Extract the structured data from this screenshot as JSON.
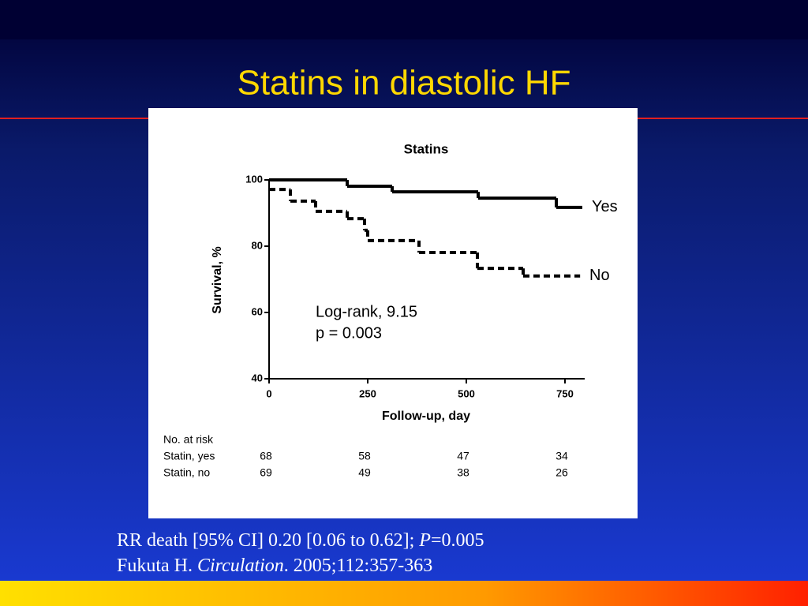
{
  "slide_title": "Statins in diastolic HF",
  "chart_data": {
    "type": "step",
    "title": "Statins",
    "x_label": "Follow-up, day",
    "y_label": "Survival, %",
    "xlim": [
      0,
      800
    ],
    "ylim": [
      40,
      100
    ],
    "xticks": [
      0,
      250,
      500,
      750
    ],
    "yticks": [
      40,
      60,
      80,
      100
    ],
    "series": [
      {
        "name": "Yes",
        "color": "#000000",
        "dashed": false,
        "x": [
          0,
          198,
          312,
          530,
          728,
          794
        ],
        "values": [
          100,
          98.1,
          96.4,
          94.5,
          91.7,
          91.7
        ]
      },
      {
        "name": "No",
        "color": "#000000",
        "dashed": true,
        "x": [
          0,
          54,
          118,
          198,
          242,
          250,
          380,
          528,
          644,
          788
        ],
        "values": [
          97.1,
          93.6,
          90.5,
          88.3,
          84.8,
          81.7,
          78.1,
          73.3,
          71.0,
          71.0
        ]
      }
    ],
    "annotations": [
      "Log-rank, 9.15",
      "p = 0.003"
    ],
    "risk_table": {
      "title": "No. at risk",
      "rows": [
        {
          "label": "Statin, yes",
          "values": [
            68,
            58,
            47,
            34
          ]
        },
        {
          "label": "Statin, no",
          "values": [
            69,
            49,
            38,
            26
          ]
        }
      ]
    }
  },
  "footnote": [
    [
      {
        "text": "RR death [95% CI] 0.20 [0.06 to 0.62]; "
      },
      {
        "text": "P",
        "italic": true
      },
      {
        "text": "=0.005"
      }
    ],
    [
      {
        "text": "Fukuta H. "
      },
      {
        "text": "Circulation",
        "italic": true
      },
      {
        "text": ". 2005;112:357-363"
      }
    ]
  ]
}
